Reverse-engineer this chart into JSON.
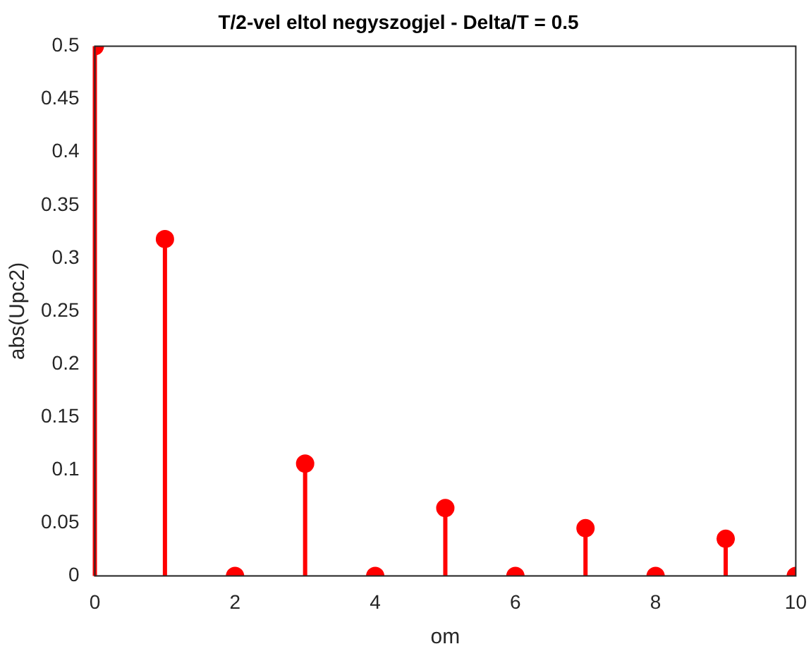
{
  "chart_data": {
    "type": "lollipop",
    "title": "T/2-vel eltol negyszogjel - Delta/T = 0.5",
    "xlabel": "om",
    "ylabel": "abs(Upc2)",
    "x": [
      0,
      1,
      2,
      3,
      4,
      5,
      6,
      7,
      8,
      9,
      10
    ],
    "values": [
      0.5,
      0.318,
      0,
      0.106,
      0,
      0.064,
      0,
      0.045,
      0,
      0.035,
      0
    ],
    "color": "#ff0000",
    "marker": "circle",
    "xlim": [
      0,
      10
    ],
    "xticks": [
      0,
      2,
      4,
      6,
      8,
      10
    ],
    "ylim": [
      0,
      0.5
    ],
    "yticks": [
      0,
      0.05,
      0.1,
      0.15,
      0.2,
      0.25,
      0.3,
      0.35,
      0.4,
      0.45,
      0.5
    ],
    "grid": false,
    "legend": false
  }
}
